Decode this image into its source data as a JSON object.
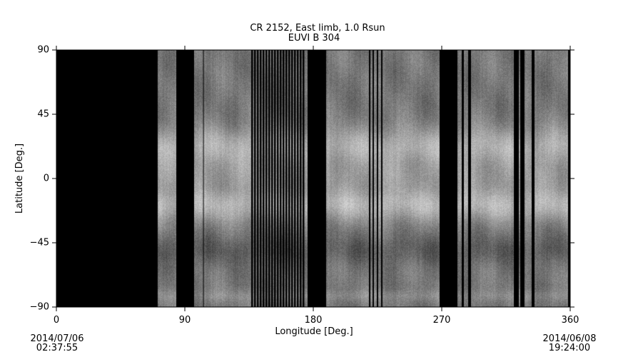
{
  "chart_data": {
    "type": "heatmap",
    "title": "CR 2152, East limb, 1.0 Rsun",
    "subtitle": "EUVI B 304",
    "xlabel": "Longitude [Deg.]",
    "ylabel": "Latitude [Deg.]",
    "xlim": [
      0,
      360
    ],
    "ylim": [
      -90,
      90
    ],
    "xticks": [
      "0",
      "90",
      "180",
      "270",
      "360"
    ],
    "yticks": [
      "90",
      "45",
      "0",
      "-45",
      "-90"
    ],
    "colormap": "grayscale",
    "missing_data_longitude_ranges": [
      [
        0,
        71
      ],
      [
        84,
        96.5
      ],
      [
        102.8,
        103.3
      ],
      [
        176,
        189
      ],
      [
        219,
        220
      ],
      [
        221.5,
        222.5
      ],
      [
        224.5,
        225.5
      ],
      [
        227.5,
        228.5
      ],
      [
        268.5,
        281
      ],
      [
        284,
        285.5
      ],
      [
        288.5,
        290.5
      ],
      [
        320.5,
        324
      ],
      [
        325,
        328
      ],
      [
        333,
        335
      ],
      [
        358.5,
        360
      ]
    ],
    "striped_missing_data_longitude_range": [
      136.5,
      174.5
    ],
    "start_date": "2014/07/06",
    "start_time": "02:37:55",
    "end_date": "2014/06/08",
    "end_time": "19:24:00"
  }
}
